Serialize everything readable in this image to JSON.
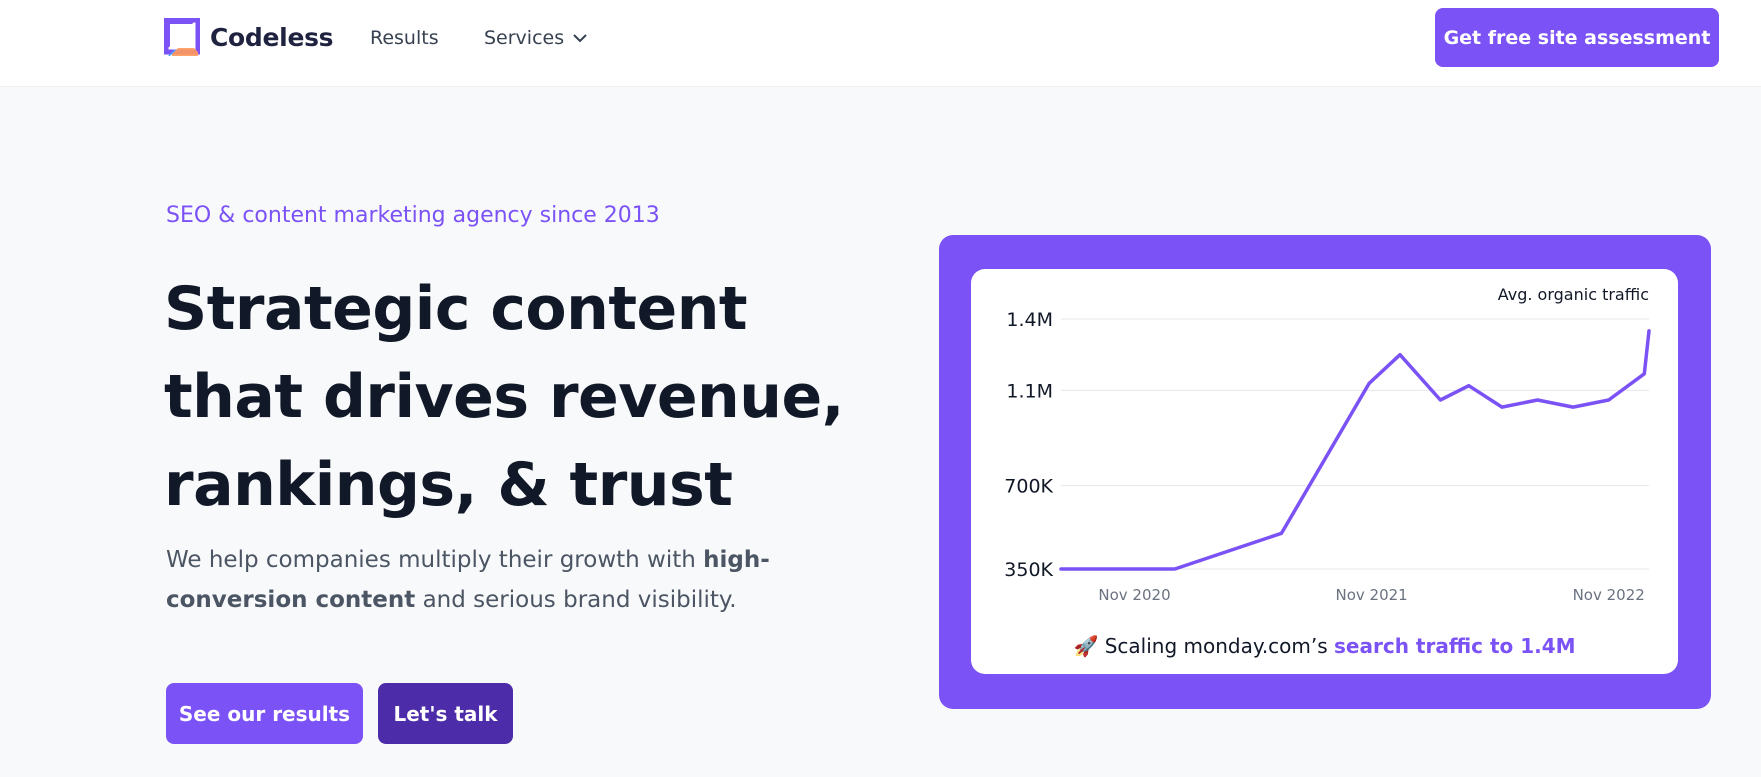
{
  "header": {
    "logo_text": "Codeless",
    "nav": [
      {
        "label": "Results"
      },
      {
        "label": "Services"
      }
    ],
    "cta_label": "Get free site assessment"
  },
  "hero": {
    "tagline": "SEO & content marketing agency since 2013",
    "headline_lines": [
      "Strategic content",
      "that drives revenue,",
      "rankings, & trust"
    ],
    "sub_1": "We help companies multiply their growth with ",
    "sub_bold": "high-conversion content",
    "sub_2": " and serious brand visibility.",
    "btn_results": "See our results",
    "btn_talk": "Let's talk"
  },
  "colors": {
    "accent": "#7b52f5",
    "accent_dark": "#4c2ca8",
    "text": "#111827",
    "muted": "#4b5563"
  },
  "chart_data": {
    "type": "line",
    "title": "Avg. organic traffic",
    "y_ticks": [
      {
        "label": "1.4M",
        "value": 1400000
      },
      {
        "label": "1.1M",
        "value": 1100000
      },
      {
        "label": "700K",
        "value": 700000
      },
      {
        "label": "350K",
        "value": 350000
      }
    ],
    "x_ticks": [
      {
        "label": "Nov 2020",
        "x": 2020.83
      },
      {
        "label": "Nov 2021",
        "x": 2021.83
      },
      {
        "label": "Nov 2022",
        "x": 2022.83
      }
    ],
    "xlim": [
      2020.52,
      2023.0
    ],
    "grid": true,
    "series": [
      {
        "color": "#7b52f5",
        "points": [
          [
            2020.52,
            350000
          ],
          [
            2020.9,
            350000
          ],
          [
            2021.0,
            350000
          ],
          [
            2021.45,
            500000
          ],
          [
            2021.82,
            1130000
          ],
          [
            2021.95,
            1250000
          ],
          [
            2022.12,
            1060000
          ],
          [
            2022.24,
            1120000
          ],
          [
            2022.38,
            1030000
          ],
          [
            2022.53,
            1060000
          ],
          [
            2022.68,
            1030000
          ],
          [
            2022.83,
            1060000
          ],
          [
            2022.98,
            1170000
          ],
          [
            2023.0,
            1350000
          ]
        ]
      }
    ],
    "caption_icon": "rocket-icon",
    "caption_text": " Scaling monday.com’s ",
    "caption_highlight": "search traffic to 1.4M"
  }
}
